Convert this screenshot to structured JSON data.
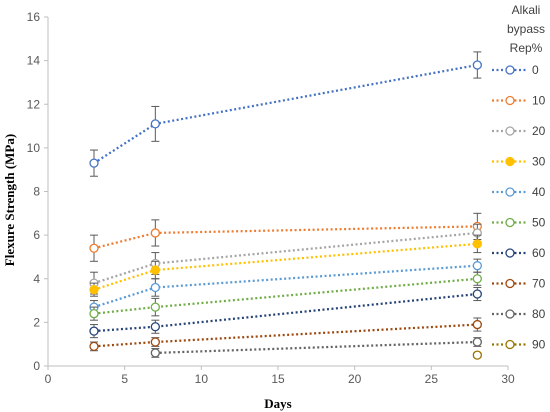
{
  "chart_data": {
    "type": "line",
    "xlabel": "Days",
    "ylabel": "Flexure Strength (MPa)",
    "xlim": [
      0,
      30
    ],
    "ylim": [
      0,
      16
    ],
    "xticks": [
      0,
      5,
      10,
      15,
      20,
      25,
      30
    ],
    "yticks": [
      0,
      2,
      4,
      6,
      8,
      10,
      12,
      14,
      16
    ],
    "grid": false,
    "legend": {
      "title_lines": [
        "Alkali",
        "bypass",
        "Rep%"
      ],
      "position": "right"
    },
    "series": [
      {
        "name": "0",
        "color": "#4472C4",
        "filled": false,
        "x": [
          3,
          7,
          28
        ],
        "y": [
          9.3,
          11.1,
          13.8
        ],
        "err": [
          0.6,
          0.8,
          0.6
        ]
      },
      {
        "name": "10",
        "color": "#ED7D31",
        "filled": false,
        "x": [
          3,
          7,
          28
        ],
        "y": [
          5.4,
          6.1,
          6.4
        ],
        "err": [
          0.6,
          0.6,
          0.6
        ]
      },
      {
        "name": "20",
        "color": "#A5A5A5",
        "filled": false,
        "x": [
          3,
          7,
          28
        ],
        "y": [
          3.8,
          4.7,
          6.1
        ],
        "err": [
          0.5,
          0.5,
          0.4
        ]
      },
      {
        "name": "30",
        "color": "#FFC000",
        "filled": true,
        "x": [
          3,
          7,
          28
        ],
        "y": [
          3.5,
          4.4,
          5.6
        ],
        "err": [
          0.3,
          0.4,
          0.4
        ]
      },
      {
        "name": "40",
        "color": "#5B9BD5",
        "filled": false,
        "x": [
          3,
          7,
          28
        ],
        "y": [
          2.7,
          3.6,
          4.6
        ],
        "err": [
          0.3,
          0.4,
          0.3
        ]
      },
      {
        "name": "50",
        "color": "#70AD47",
        "filled": false,
        "x": [
          3,
          7,
          28
        ],
        "y": [
          2.4,
          2.7,
          4.0
        ],
        "err": [
          0.3,
          0.4,
          0.3
        ]
      },
      {
        "name": "60",
        "color": "#264478",
        "filled": false,
        "x": [
          3,
          7,
          28
        ],
        "y": [
          1.6,
          1.8,
          3.3
        ],
        "err": [
          0.3,
          0.3,
          0.3
        ]
      },
      {
        "name": "70",
        "color": "#9E480E",
        "filled": false,
        "x": [
          3,
          7,
          28
        ],
        "y": [
          0.9,
          1.1,
          1.9
        ],
        "err": [
          0.2,
          0.2,
          0.3
        ]
      },
      {
        "name": "80",
        "color": "#636363",
        "filled": false,
        "x": [
          7,
          28
        ],
        "y": [
          0.6,
          1.1
        ],
        "err": [
          0.2,
          0.2
        ]
      },
      {
        "name": "90",
        "color": "#997300",
        "filled": false,
        "x": [
          28
        ],
        "y": [
          0.5
        ],
        "err": [
          0.1
        ]
      }
    ]
  }
}
